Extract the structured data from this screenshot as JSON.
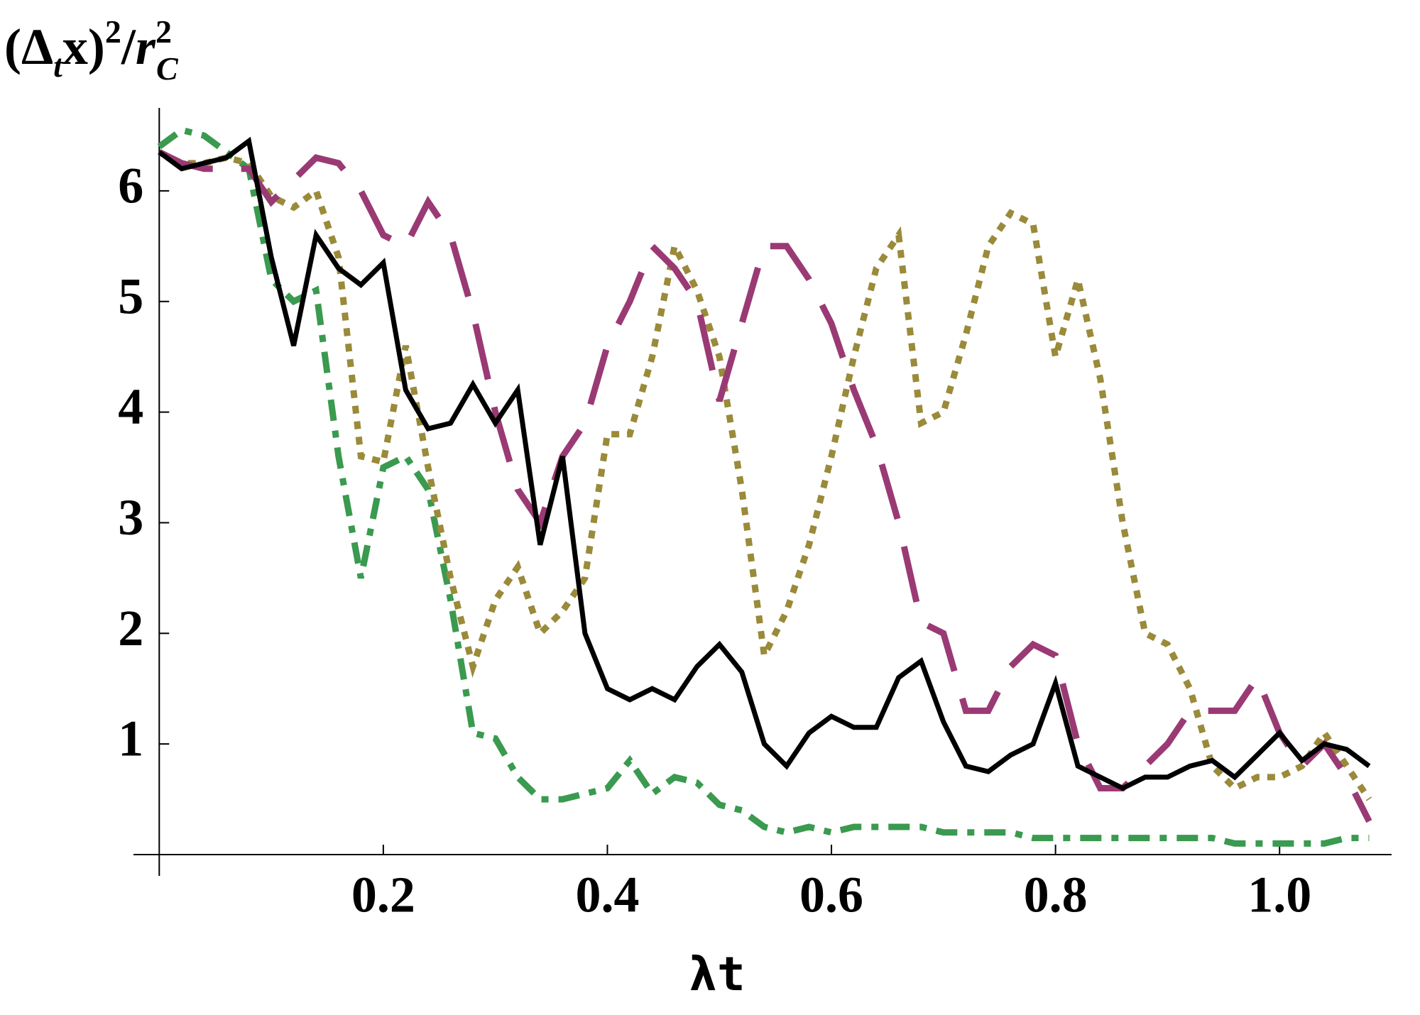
{
  "chart_data": {
    "type": "line",
    "ylabel": [
      "(Δ",
      "t",
      "x)",
      "2",
      "/",
      "r",
      "2",
      "C"
    ],
    "xlabel": "λt",
    "xlim": [
      -0.023,
      1.1
    ],
    "ylim": [
      0,
      6.75
    ],
    "xticks": [
      0.2,
      0.4,
      0.6,
      0.8,
      {
        "value": 1,
        "label": "1.0"
      }
    ],
    "yticks": [
      1,
      2,
      3,
      4,
      5,
      6
    ],
    "x": [
      0,
      0.02,
      0.04,
      0.06,
      0.08,
      0.1,
      0.12,
      0.14,
      0.16,
      0.18,
      0.2,
      0.22,
      0.24,
      0.26,
      0.28,
      0.3,
      0.32,
      0.34,
      0.36,
      0.38,
      0.4,
      0.42,
      0.44,
      0.46,
      0.48,
      0.5,
      0.52,
      0.54,
      0.56,
      0.58,
      0.6,
      0.62,
      0.64,
      0.66,
      0.68,
      0.7,
      0.72,
      0.74,
      0.76,
      0.78,
      0.8,
      0.82,
      0.84,
      0.86,
      0.88,
      0.9,
      0.92,
      0.94,
      0.96,
      0.98,
      1.0,
      1.02,
      1.04,
      1.06,
      1.08
    ],
    "series": [
      {
        "color": "#3a9a4f",
        "style": "dashdot",
        "values": [
          6.4,
          6.55,
          6.5,
          6.35,
          6.2,
          5.2,
          5.0,
          5.1,
          3.6,
          2.5,
          3.5,
          3.6,
          3.3,
          2.3,
          1.1,
          1.05,
          0.7,
          0.5,
          0.5,
          0.55,
          0.6,
          0.85,
          0.55,
          0.7,
          0.65,
          0.45,
          0.4,
          0.25,
          0.2,
          0.25,
          0.2,
          0.25,
          0.25,
          0.25,
          0.25,
          0.2,
          0.2,
          0.2,
          0.2,
          0.15,
          0.15,
          0.15,
          0.15,
          0.15,
          0.15,
          0.15,
          0.15,
          0.15,
          0.1,
          0.1,
          0.1,
          0.1,
          0.1,
          0.15,
          0.15
        ]
      },
      {
        "color": "#9a8a3a",
        "style": "dotted",
        "values": [
          6.35,
          6.25,
          6.25,
          6.3,
          6.25,
          5.95,
          5.85,
          6.0,
          5.4,
          3.6,
          3.55,
          4.6,
          3.5,
          2.5,
          1.7,
          2.3,
          2.6,
          2.0,
          2.2,
          2.5,
          3.8,
          3.8,
          4.5,
          5.5,
          5.1,
          4.5,
          3.3,
          1.8,
          2.2,
          2.8,
          3.6,
          4.5,
          5.3,
          5.6,
          3.9,
          4.0,
          4.7,
          5.5,
          5.8,
          5.7,
          4.5,
          5.2,
          4.3,
          3.0,
          2.0,
          1.9,
          1.5,
          0.8,
          0.6,
          0.7,
          0.7,
          0.8,
          1.1,
          0.8,
          0.5
        ]
      },
      {
        "color": "#9a3a74",
        "style": "dashed",
        "values": [
          6.35,
          6.25,
          6.2,
          6.2,
          6.2,
          5.9,
          6.1,
          6.3,
          6.25,
          6.0,
          5.6,
          5.5,
          5.9,
          5.6,
          4.9,
          4.0,
          3.3,
          3.0,
          3.6,
          3.9,
          4.6,
          5.0,
          5.5,
          5.3,
          5.0,
          4.1,
          4.8,
          5.5,
          5.5,
          5.2,
          4.8,
          4.2,
          3.7,
          3.0,
          2.1,
          2.0,
          1.3,
          1.3,
          1.7,
          1.9,
          1.8,
          1.0,
          0.6,
          0.6,
          0.8,
          1.0,
          1.3,
          1.3,
          1.3,
          1.6,
          1.1,
          0.8,
          1.0,
          0.7,
          0.3
        ]
      },
      {
        "color": "#000000",
        "style": "solid",
        "values": [
          6.35,
          6.2,
          6.25,
          6.3,
          6.45,
          5.4,
          4.6,
          5.6,
          5.3,
          5.15,
          5.35,
          4.2,
          3.85,
          3.9,
          4.25,
          3.9,
          4.2,
          2.8,
          3.6,
          2.0,
          1.5,
          1.4,
          1.5,
          1.4,
          1.7,
          1.9,
          1.65,
          1.0,
          0.8,
          1.1,
          1.25,
          1.15,
          1.15,
          1.6,
          1.75,
          1.2,
          0.8,
          0.75,
          0.9,
          1.0,
          1.55,
          0.8,
          0.7,
          0.6,
          0.7,
          0.7,
          0.8,
          0.85,
          0.7,
          0.9,
          1.1,
          0.85,
          1.0,
          0.95,
          0.8
        ]
      }
    ]
  }
}
